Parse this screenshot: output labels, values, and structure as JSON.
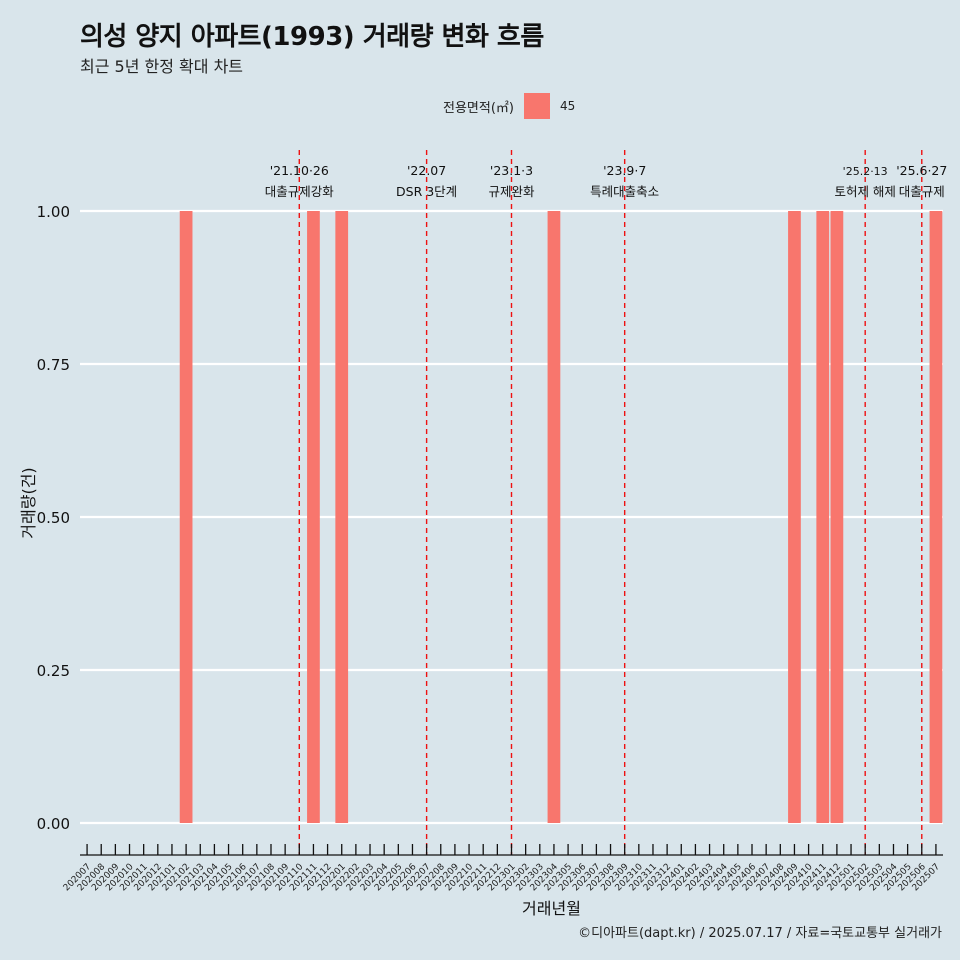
{
  "title": "의성 양지 아파트(1993) 거래량 변화 흐름",
  "subtitle": "최근 5년 한정 확대 차트",
  "legend": {
    "title": "전용면적(㎡)",
    "label": "45",
    "color": "#f8766d"
  },
  "caption": "©디아파트(dapt.kr) / 2025.07.17 / 자료=국토교통부 실거래가",
  "chart_data": {
    "type": "bar",
    "title": "의성 양지 아파트(1993) 거래량 변화 흐름",
    "subtitle": "최근 5년 한정 확대 차트",
    "xlabel": "거래년월",
    "ylabel": "거래량(건)",
    "ylim": [
      0,
      1
    ],
    "yticks": [
      "0.00",
      "0.25",
      "0.50",
      "0.75",
      "1.00"
    ],
    "grid": true,
    "legend_position": "top",
    "categories": [
      "202007",
      "202008",
      "202009",
      "202010",
      "202011",
      "202012",
      "202101",
      "202102",
      "202103",
      "202104",
      "202105",
      "202106",
      "202107",
      "202108",
      "202109",
      "202110",
      "202111",
      "202112",
      "202201",
      "202202",
      "202203",
      "202204",
      "202205",
      "202206",
      "202207",
      "202208",
      "202209",
      "202210",
      "202211",
      "202212",
      "202301",
      "202302",
      "202303",
      "202304",
      "202305",
      "202306",
      "202307",
      "202308",
      "202309",
      "202310",
      "202311",
      "202312",
      "202401",
      "202402",
      "202403",
      "202404",
      "202405",
      "202406",
      "202407",
      "202408",
      "202409",
      "202410",
      "202411",
      "202412",
      "202501",
      "202502",
      "202503",
      "202504",
      "202505",
      "202506",
      "202507"
    ],
    "series": [
      {
        "name": "45",
        "color": "#f8766d",
        "bars": [
          {
            "x": "202102",
            "y": 1
          },
          {
            "x": "202111",
            "y": 1
          },
          {
            "x": "202201",
            "y": 1
          },
          {
            "x": "202304",
            "y": 1
          },
          {
            "x": "202409",
            "y": 1
          },
          {
            "x": "202411",
            "y": 1
          },
          {
            "x": "202412",
            "y": 1
          },
          {
            "x": "202507",
            "y": 1
          }
        ]
      }
    ],
    "annotations": [
      {
        "x": "202110",
        "line1": "'21.10·26",
        "line2": "대출규제강화"
      },
      {
        "x": "202207",
        "line1": "'22.07",
        "line2": "DSR 3단계"
      },
      {
        "x": "202301",
        "line1": "'23.1·3",
        "line2": "규제완화"
      },
      {
        "x": "202309",
        "line1": "'23.9·7",
        "line2": "특례대출축소"
      },
      {
        "x": "202502",
        "line1": "'25.2·13",
        "line2": "토허제 해제"
      },
      {
        "x": "202506",
        "line1": "'25.6·27",
        "line2": "대출규제"
      }
    ]
  }
}
